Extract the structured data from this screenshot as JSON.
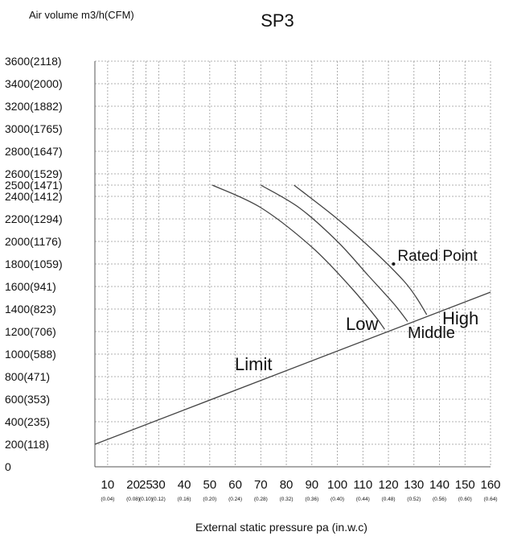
{
  "chart_data": {
    "type": "line",
    "title": "SP3",
    "ylabel": "Air volume m3/h(CFM)",
    "xlabel": "External static pressure pa  (in.w.c)",
    "xlim": [
      5,
      160
    ],
    "ylim": [
      0,
      3600
    ],
    "grid": true,
    "x_ticks": [
      {
        "value": 10,
        "label": "10",
        "sub": "(0.04)"
      },
      {
        "value": 20,
        "label": "20",
        "sub": "(0.08)"
      },
      {
        "value": 25,
        "label": "25",
        "sub": "(0.10)"
      },
      {
        "value": 30,
        "label": "30",
        "sub": "(0.12)"
      },
      {
        "value": 40,
        "label": "40",
        "sub": "(0.16)"
      },
      {
        "value": 50,
        "label": "50",
        "sub": "(0.20)"
      },
      {
        "value": 60,
        "label": "60",
        "sub": "(0.24)"
      },
      {
        "value": 70,
        "label": "70",
        "sub": "(0.28)"
      },
      {
        "value": 80,
        "label": "80",
        "sub": "(0.32)"
      },
      {
        "value": 90,
        "label": "90",
        "sub": "(0.36)"
      },
      {
        "value": 100,
        "label": "100",
        "sub": "(0.40)"
      },
      {
        "value": 110,
        "label": "110",
        "sub": "(0.44)"
      },
      {
        "value": 120,
        "label": "120",
        "sub": "(0.48)"
      },
      {
        "value": 130,
        "label": "130",
        "sub": "(0.52)"
      },
      {
        "value": 140,
        "label": "140",
        "sub": "(0.56)"
      },
      {
        "value": 150,
        "label": "150",
        "sub": "(0.60)"
      },
      {
        "value": 160,
        "label": "160",
        "sub": "(0.64)"
      }
    ],
    "y_ticks": [
      {
        "value": 0,
        "label": "0"
      },
      {
        "value": 200,
        "label": "200(118)"
      },
      {
        "value": 400,
        "label": "400(235)"
      },
      {
        "value": 600,
        "label": "600(353)"
      },
      {
        "value": 800,
        "label": "800(471)"
      },
      {
        "value": 1000,
        "label": "1000(588)"
      },
      {
        "value": 1200,
        "label": "1200(706)"
      },
      {
        "value": 1400,
        "label": "1400(823)"
      },
      {
        "value": 1600,
        "label": "1600(941)"
      },
      {
        "value": 1800,
        "label": "1800(1059)"
      },
      {
        "value": 2000,
        "label": "2000(1176)"
      },
      {
        "value": 2200,
        "label": "2200(1294)"
      },
      {
        "value": 2400,
        "label": "2400(1412)"
      },
      {
        "value": 2500,
        "label": "2500(1471)"
      },
      {
        "value": 2600,
        "label": "2600(1529)"
      },
      {
        "value": 2800,
        "label": "2800(1647)"
      },
      {
        "value": 3000,
        "label": "3000(1765)"
      },
      {
        "value": 3200,
        "label": "3200(1882)"
      },
      {
        "value": 3400,
        "label": "3400(2000)"
      },
      {
        "value": 3600,
        "label": "3600(2118)"
      }
    ],
    "series": [
      {
        "name": "Low",
        "x": [
          51,
          70,
          90,
          105,
          115,
          118.5
        ],
        "y": [
          2500,
          2300,
          1950,
          1600,
          1330,
          1220
        ]
      },
      {
        "name": "Middle",
        "x": [
          70,
          85,
          100,
          112,
          122,
          127.5
        ],
        "y": [
          2500,
          2300,
          2000,
          1700,
          1450,
          1290
        ]
      },
      {
        "name": "High",
        "x": [
          83,
          100,
          115,
          126,
          131,
          135
        ],
        "y": [
          2500,
          2200,
          1900,
          1650,
          1500,
          1350
        ]
      },
      {
        "name": "Limit",
        "x": [
          5,
          160
        ],
        "y": [
          200,
          1550
        ]
      }
    ],
    "markers": [
      {
        "label": "Rated Point",
        "x": 122,
        "y": 1800
      }
    ]
  }
}
